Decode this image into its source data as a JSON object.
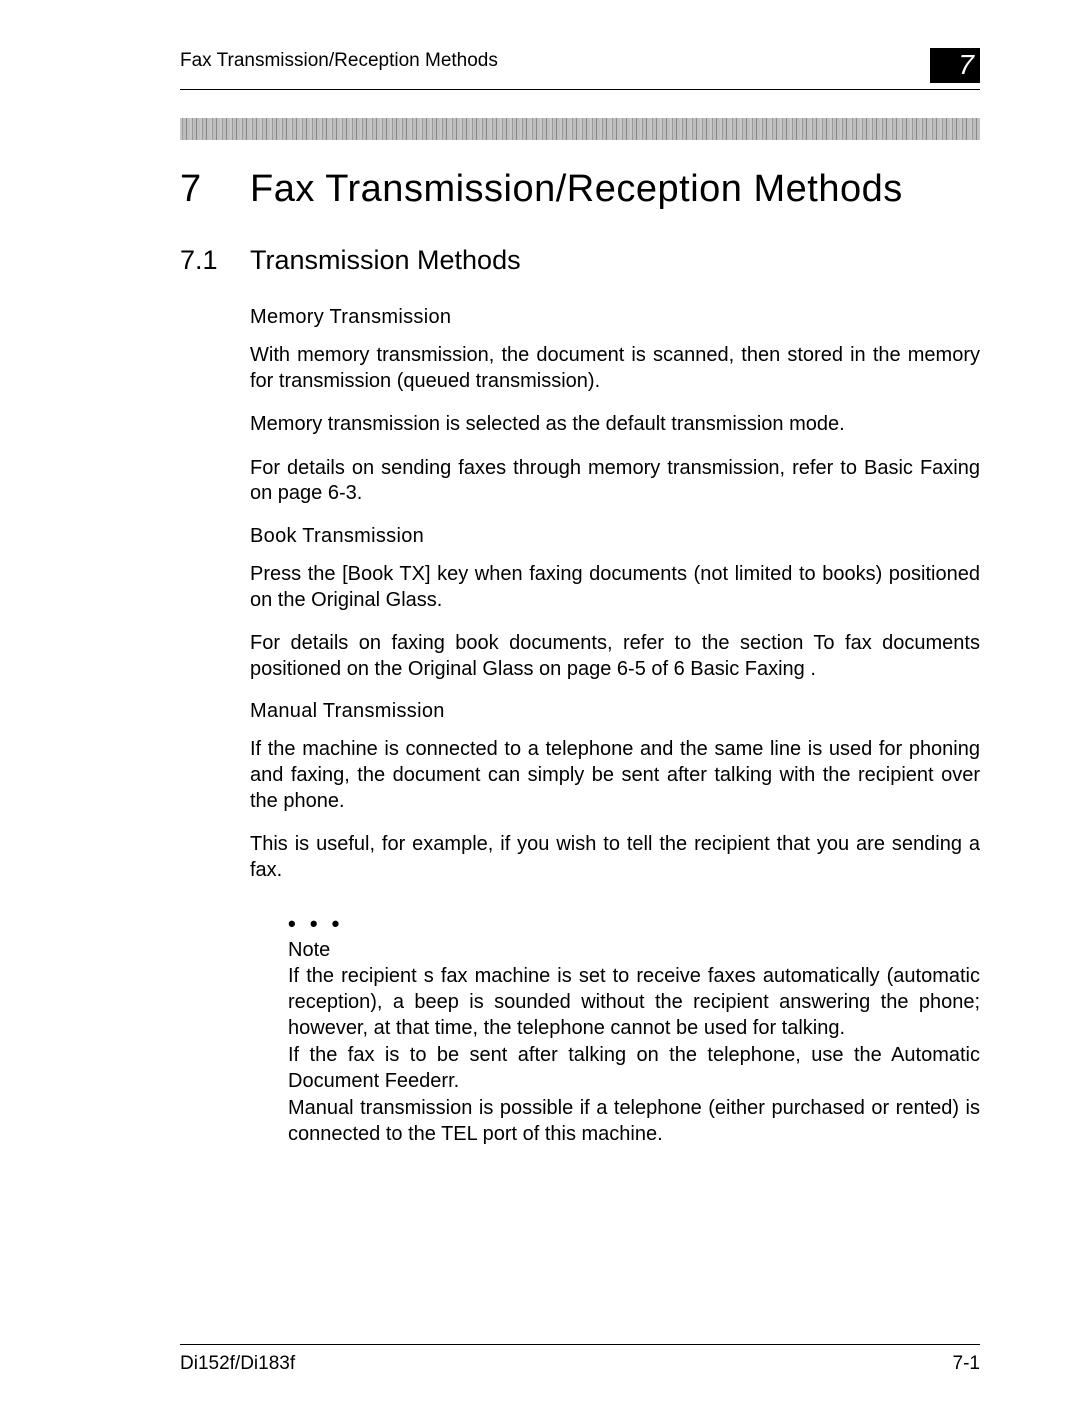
{
  "header": {
    "running_title": "Fax Transmission/Reception Methods",
    "chapter_badge": "7"
  },
  "chapter": {
    "number": "7",
    "title": "Fax Transmission/Reception Methods"
  },
  "section": {
    "number": "7.1",
    "title": "Transmission Methods"
  },
  "subsections": [
    {
      "heading": "Memory Transmission",
      "paragraphs": [
        "With memory transmission, the document is scanned, then stored in the memory for transmission (queued transmission).",
        "Memory transmission is selected as the default transmission mode.",
        "For details on sending faxes through memory transmission, refer to  Basic Faxing  on page 6-3."
      ]
    },
    {
      "heading": "Book Transmission",
      "paragraphs": [
        "Press the [Book TX] key when faxing documents (not limited to books) positioned on the Original Glass.",
        "For details on faxing book documents, refer to the section  To fax documents positioned on the Original Glass  on page 6-5 of  6 Basic Faxing ."
      ]
    },
    {
      "heading": "Manual Transmission",
      "paragraphs": [
        "If the machine is connected to a telephone and the same line is used for phoning and faxing, the document can simply be sent after talking with the recipient over the phone.",
        "This is useful, for example, if you wish to tell the recipient that you are sending a fax."
      ]
    }
  ],
  "note": {
    "dots": "•  •  •",
    "label": "Note",
    "paragraphs": [
      "If the recipient s fax machine is set to receive faxes automatically (automatic reception),  a beep is sounded without the recipient answering the phone; however, at that time, the telephone cannot be used for talking.",
      "If the fax is to be sent after talking on the telephone, use the Automatic Document Feederr.",
      "Manual transmission is possible if a telephone (either purchased or rented) is connected to the TEL port of this machine."
    ]
  },
  "footer": {
    "model": "Di152f/Di183f",
    "page": "7-1"
  },
  "colors": {
    "text": "#000000",
    "bg": "#ffffff",
    "badge_bg": "#000000",
    "badge_fg": "#ffffff",
    "noise_bar": "#b0b0b0"
  },
  "typography": {
    "body_fontsize_pt": 15,
    "chapter_fontsize_pt": 28,
    "section_fontsize_pt": 20,
    "font_family": "Arial"
  }
}
